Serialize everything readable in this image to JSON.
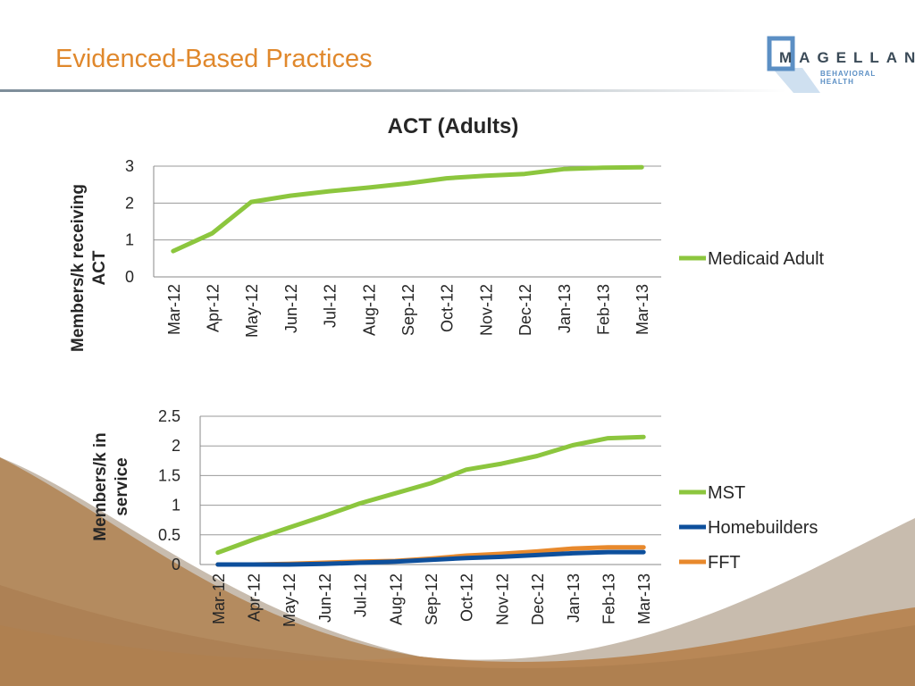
{
  "slide": {
    "title": "Evidenced-Based Practices",
    "logo": {
      "name": "MAGELLAN",
      "sub": "BEHAVIORAL HEALTH"
    }
  },
  "colors": {
    "green": "#8cc63e",
    "blue": "#0d4f9c",
    "orange": "#e8892c",
    "accent": "#e0882c"
  },
  "chart_data": [
    {
      "type": "line",
      "title": "ACT (Adults)",
      "ylabel_lines": [
        "Members/k receiving",
        "ACT"
      ],
      "xlabel": "",
      "categories": [
        "Mar-12",
        "Apr-12",
        "May-12",
        "Jun-12",
        "Jul-12",
        "Aug-12",
        "Sep-12",
        "Oct-12",
        "Nov-12",
        "Dec-12",
        "Jan-13",
        "Feb-13",
        "Mar-13"
      ],
      "ylim": [
        0,
        3
      ],
      "yticks": [
        "0",
        "1",
        "2",
        "3"
      ],
      "legend_position": "right",
      "series": [
        {
          "name": "Medicaid Adult",
          "color": "#8cc63e",
          "values": [
            0.7,
            1.18,
            2.03,
            2.2,
            2.32,
            2.42,
            2.53,
            2.67,
            2.74,
            2.79,
            2.92,
            2.96,
            2.97
          ]
        }
      ]
    },
    {
      "type": "line",
      "title": "",
      "ylabel_lines": [
        "Members/k  in",
        "service"
      ],
      "xlabel": "",
      "categories": [
        "Mar-12",
        "Apr-12",
        "May-12",
        "Jun-12",
        "Jul-12",
        "Aug-12",
        "Sep-12",
        "Oct-12",
        "Nov-12",
        "Dec-12",
        "Jan-13",
        "Feb-13",
        "Mar-13"
      ],
      "ylim": [
        0,
        2.5
      ],
      "yticks": [
        "0",
        "0.5",
        "1",
        "1.5",
        "2",
        "2.5"
      ],
      "legend_position": "right",
      "series": [
        {
          "name": "MST",
          "color": "#8cc63e",
          "values": [
            0.2,
            0.42,
            0.62,
            0.82,
            1.03,
            1.2,
            1.37,
            1.6,
            1.7,
            1.83,
            2.01,
            2.13,
            2.15
          ]
        },
        {
          "name": "Homebuilders",
          "color": "#0d4f9c",
          "values": [
            0,
            0,
            0,
            0.01,
            0.03,
            0.05,
            0.08,
            0.11,
            0.13,
            0.16,
            0.19,
            0.21,
            0.21
          ]
        },
        {
          "name": "FFT",
          "color": "#e8892c",
          "values": [
            0,
            0,
            0.01,
            0.03,
            0.05,
            0.06,
            0.1,
            0.15,
            0.18,
            0.22,
            0.27,
            0.29,
            0.29
          ]
        }
      ]
    }
  ]
}
